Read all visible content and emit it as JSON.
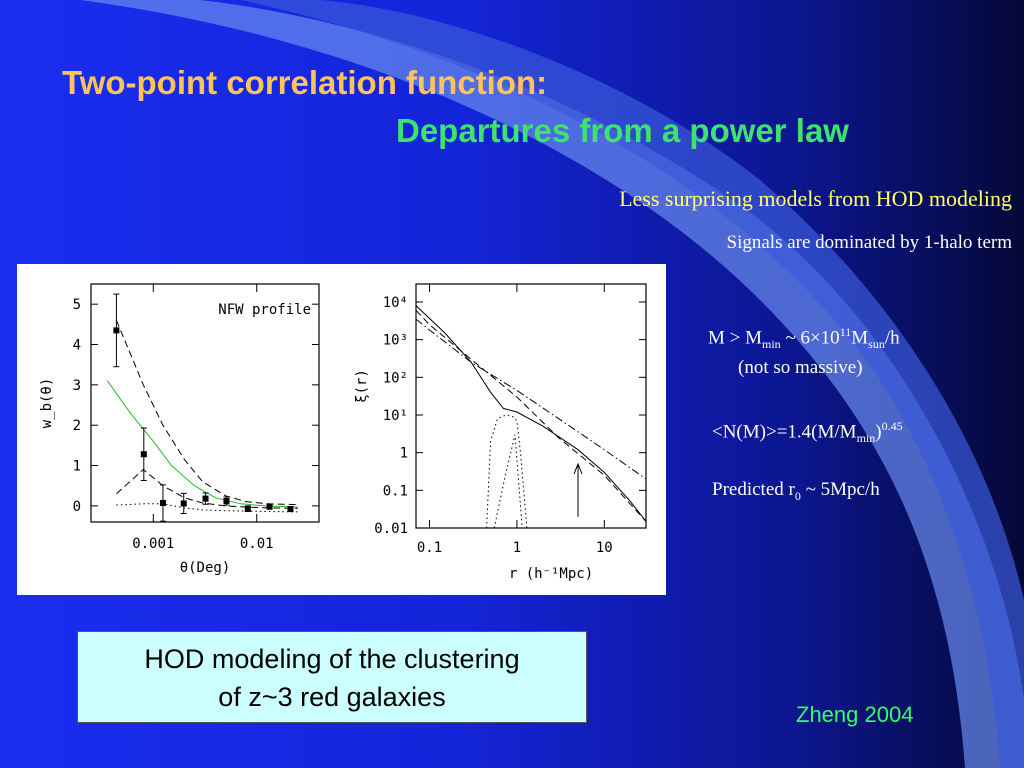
{
  "slide": {
    "title_line1": "Two-point correlation function:",
    "title_line2": "Departures from a power law",
    "subtitle": "Less surprising models from HOD modeling",
    "note": "Signals are dominated by 1-halo term",
    "bullets": {
      "mass_prefix": "M > M",
      "mass_sub": "min",
      "mass_mid": " ~ 6×10",
      "mass_sup": "11",
      "mass_m": "M",
      "mass_sub2": "sun",
      "mass_suffix": "/h",
      "not_massive": "(not so massive)",
      "occ_prefix": "<N(M)>=1.4(M/M",
      "occ_sub": "min",
      "occ_close": ")",
      "occ_sup": "0.45",
      "r0_prefix": "Predicted  r",
      "r0_sub": "0",
      "r0_suffix": " ~ 5Mpc/h"
    },
    "caption_line1": "HOD modeling of the clustering",
    "caption_line2": "of z~3 red galaxies",
    "credit": "Zheng 2004",
    "colors": {
      "title1": "#ffc35a",
      "title2": "#3de36d",
      "subtitle": "#ffff66",
      "credit": "#33ff66",
      "caption_bg": "#ccffff"
    }
  },
  "chart_data": [
    {
      "type": "line",
      "x_scale": "log",
      "xlim": [
        0.00025,
        0.04
      ],
      "ylim": [
        -0.4,
        5.5
      ],
      "xlabel": "θ(Deg)",
      "ylabel": "w_b(θ)",
      "xticks": [
        "0.001",
        "0.01"
      ],
      "yticks": [
        "0",
        "1",
        "2",
        "3",
        "4",
        "5"
      ],
      "annotation": "NFW profile",
      "points": {
        "x": [
          0.00044,
          0.00081,
          0.00124,
          0.00197,
          0.0032,
          0.0051,
          0.0082,
          0.0133,
          0.0212
        ],
        "y": [
          4.35,
          1.28,
          0.07,
          0.06,
          0.18,
          0.12,
          -0.07,
          -0.02,
          -0.08
        ],
        "err": [
          0.9,
          0.65,
          0.45,
          0.25,
          0.14,
          0.1,
          0.07,
          0.06,
          0.06
        ]
      },
      "lines": [
        {
          "style": "dashed",
          "x": [
            0.00044,
            0.0008,
            0.00124,
            0.002,
            0.003,
            0.005,
            0.008,
            0.013,
            0.025
          ],
          "y": [
            4.6,
            3.0,
            2.0,
            1.15,
            0.6,
            0.25,
            0.1,
            0.05,
            0.03
          ]
        },
        {
          "style": "dashed",
          "x": [
            0.00044,
            0.0008,
            0.00124,
            0.002,
            0.003,
            0.005,
            0.008,
            0.013,
            0.025
          ],
          "y": [
            0.3,
            0.9,
            0.5,
            0.2,
            0.07,
            0.0,
            -0.03,
            -0.05,
            -0.06
          ]
        },
        {
          "style": "solid",
          "color": "green",
          "x": [
            0.00036,
            0.0006,
            0.001,
            0.0015,
            0.0025,
            0.004,
            0.007,
            0.012,
            0.025
          ],
          "y": [
            3.1,
            2.3,
            1.6,
            1.0,
            0.5,
            0.2,
            0.05,
            0.0,
            -0.03
          ]
        },
        {
          "style": "dotted",
          "x": [
            0.00044,
            0.0008,
            0.00124,
            0.002,
            0.003,
            0.005,
            0.008,
            0.013,
            0.025
          ],
          "y": [
            0.02,
            0.05,
            0.05,
            -0.05,
            -0.1,
            -0.12,
            -0.13,
            -0.14,
            -0.15
          ]
        }
      ]
    },
    {
      "type": "line",
      "x_scale": "log",
      "y_scale": "log",
      "xlim": [
        0.07,
        30
      ],
      "ylim": [
        0.01,
        30000
      ],
      "xlabel": "r (h⁻¹Mpc)",
      "ylabel": "ξ(r)",
      "xticks": [
        "0.1",
        "1",
        "10"
      ],
      "yticks": [
        "10⁴",
        "10³",
        "10²",
        "10¹",
        "1",
        "0.1",
        "0.01"
      ],
      "annotation": "arrow at r ≈ 5",
      "lines": [
        {
          "style": "solid",
          "x": [
            0.07,
            0.15,
            0.3,
            0.5,
            0.7,
            1,
            2,
            5,
            10,
            20,
            30
          ],
          "y": [
            8000,
            1500,
            250,
            40,
            15,
            12,
            5,
            1.2,
            0.3,
            0.05,
            0.015
          ]
        },
        {
          "style": "dashed",
          "x": [
            0.07,
            0.1,
            0.3,
            1,
            3,
            10,
            30
          ],
          "y": [
            6000,
            2500,
            300,
            30,
            2.5,
            0.25,
            0.015
          ]
        },
        {
          "style": "dashdot",
          "x": [
            0.07,
            0.1,
            0.3,
            1,
            3,
            10,
            30
          ],
          "y": [
            3500,
            1800,
            250,
            45,
            8,
            1.2,
            0.2
          ]
        },
        {
          "style": "dotted",
          "x": [
            0.45,
            0.5,
            0.6,
            0.75,
            0.9,
            1.0,
            1.1,
            1.3
          ],
          "y": [
            0.01,
            2,
            8,
            10,
            9,
            7,
            1,
            0.01
          ]
        },
        {
          "style": "dotted",
          "x": [
            0.55,
            0.75,
            0.95,
            1.15
          ],
          "y": [
            0.01,
            0.3,
            3,
            0.01
          ]
        }
      ]
    }
  ]
}
